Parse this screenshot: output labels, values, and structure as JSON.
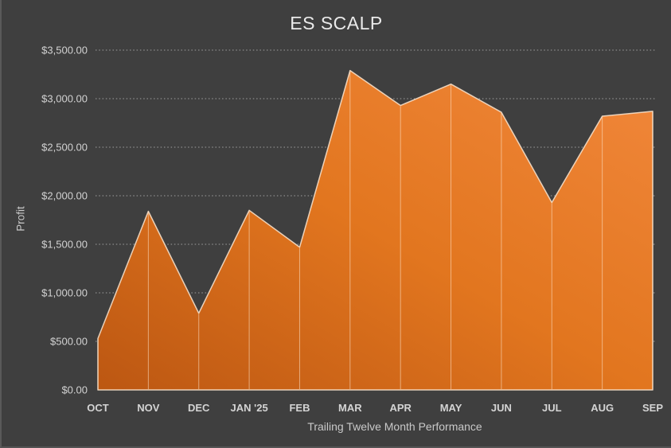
{
  "chart": {
    "title": "ES SCALP",
    "y_axis_title": "Profit",
    "x_axis_title": "Trailing Twelve Month Performance",
    "y_tick_labels": [
      "$0.00",
      "$500.00",
      "$1,000.00",
      "$1,500.00",
      "$2,000.00",
      "$2,500.00",
      "$3,000.00",
      "$3,500.00"
    ]
  },
  "chart_data": {
    "type": "area",
    "title": "ES SCALP",
    "xlabel": "Trailing Twelve Month Performance",
    "ylabel": "Profit",
    "categories": [
      "OCT",
      "NOV",
      "DEC",
      "JAN '25",
      "FEB",
      "MAR",
      "APR",
      "MAY",
      "JUN",
      "JUL",
      "AUG",
      "SEP"
    ],
    "values": [
      530,
      1840,
      790,
      1850,
      1470,
      3290,
      2930,
      3150,
      2860,
      1930,
      2820,
      2870
    ],
    "ylim": [
      0,
      3500
    ],
    "y_tick_step": 500,
    "grid": "dotted-horizontal",
    "legend": false,
    "colors": {
      "background": "#3F3F3F",
      "area_gradient_bright": "#F1873B",
      "area_gradient_mid": "#E2761F",
      "area_gradient_dark": "#BC5712",
      "area_border": "#F6DFC8",
      "drop_line": "#FFE6CD",
      "grid_line": "#FFFFFF",
      "tick_text": "#D2D2D2",
      "axis_title_text": "#C9C9C9",
      "title_text": "#EAEAEA"
    }
  }
}
